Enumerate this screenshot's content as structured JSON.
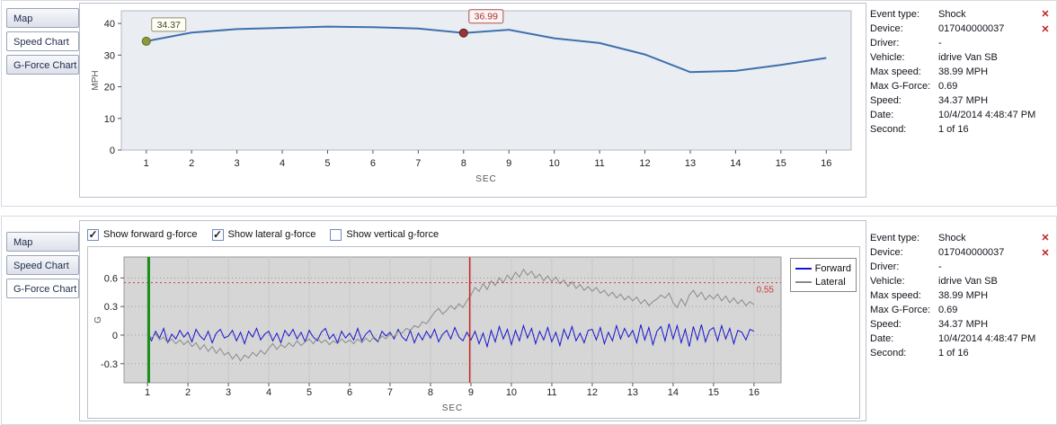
{
  "glyphs": {
    "check": "✓",
    "close": "✕"
  },
  "panels": [
    {
      "id": "speed-panel",
      "tabs": [
        {
          "label": "Map"
        },
        {
          "label": "Speed Chart"
        },
        {
          "label": "G-Force Chart"
        }
      ],
      "selected_tab": "Speed Chart"
    },
    {
      "id": "gforce-panel",
      "tabs": [
        {
          "label": "Map"
        },
        {
          "label": "Speed Chart"
        },
        {
          "label": "G-Force Chart"
        }
      ],
      "selected_tab": "G-Force Chart",
      "checkboxes": [
        {
          "label": "Show forward g-force",
          "checked": true
        },
        {
          "label": "Show lateral g-force",
          "checked": true
        },
        {
          "label": "Show vertical g-force",
          "checked": false
        }
      ]
    }
  ],
  "info_panel": {
    "rows": [
      {
        "label": "Event type:",
        "value": "Shock"
      },
      {
        "label": "Device:",
        "value": "017040000037"
      },
      {
        "label": "Driver:",
        "value": "-"
      },
      {
        "label": "Vehicle:",
        "value": "idrive Van SB"
      },
      {
        "label": "Max speed:",
        "value": "38.99 MPH"
      },
      {
        "label": "Max G-Force:",
        "value": "0.69"
      },
      {
        "label": "Speed:",
        "value": "34.37 MPH"
      },
      {
        "label": "Date:",
        "value": "10/4/2014 4:48:47 PM"
      },
      {
        "label": "Second:",
        "value": "1 of 16"
      }
    ]
  },
  "chart_data": [
    {
      "id": "speed",
      "type": "line",
      "title": "",
      "xlabel": "SEC",
      "ylabel": "MPH",
      "xlim": [
        0.45,
        16.55
      ],
      "ylim": [
        0,
        44
      ],
      "xticks": [
        1,
        2,
        3,
        4,
        5,
        6,
        7,
        8,
        9,
        10,
        11,
        12,
        13,
        14,
        15,
        16
      ],
      "yticks": [
        0,
        10,
        20,
        30,
        40
      ],
      "grid_v": false,
      "grid_h": false,
      "plot_bg": "#eaeef3",
      "plot_border": "#b6bac2",
      "x": [
        1,
        2,
        3,
        4,
        5,
        6,
        7,
        8,
        9,
        10,
        11,
        12,
        13,
        14,
        15,
        16
      ],
      "series": [
        {
          "name": "Speed",
          "color": "#3f6fae",
          "width": 2,
          "values": [
            34.37,
            37.1,
            38.2,
            38.6,
            39.0,
            38.8,
            38.4,
            36.99,
            38.0,
            35.3,
            33.8,
            30.2,
            24.6,
            25.0,
            26.9,
            29.1
          ]
        }
      ],
      "annotations": [
        {
          "x": 1,
          "y": 34.37,
          "label": "34.37",
          "dot_fill": "#8c9a3c",
          "dot_stroke": "#606b24",
          "box_bg": "#fffef2",
          "box_border": "#8f8f75",
          "text_color": "#44442e"
        },
        {
          "x": 8,
          "y": 36.99,
          "label": "36.99",
          "dot_fill": "#973636",
          "dot_stroke": "#5e1f1f",
          "box_bg": "#fdf3f3",
          "box_border": "#a85252",
          "text_color": "#a33434"
        }
      ]
    },
    {
      "id": "gforce",
      "type": "line",
      "title": "",
      "xlabel": "SEC",
      "ylabel": "G",
      "xlim": [
        0.42,
        16.67
      ],
      "ylim": [
        -0.5,
        0.82
      ],
      "xticks": [
        1,
        2,
        3,
        4,
        5,
        6,
        7,
        8,
        9,
        10,
        11,
        12,
        13,
        14,
        15,
        16
      ],
      "yticks": [
        -0.3,
        0,
        0.3,
        0.6
      ],
      "grid_v": true,
      "grid_v_color": "#c9c9c9",
      "grid_h": true,
      "grid_h_color": "#9d9d9d",
      "plot_bg": "#d6d6d6",
      "plot_border": "#9a9a9a",
      "x_start": 1,
      "x_step": 0.1,
      "threshold": {
        "y": 0.55,
        "label": "0.55",
        "color": "#d03a3a"
      },
      "vlines": [
        {
          "x": 1.03,
          "color": "#159015",
          "width": 3
        },
        {
          "x": 8.97,
          "color": "#cc2222",
          "width": 1.5
        }
      ],
      "legend_position": "top-right",
      "series": [
        {
          "name": "Forward",
          "color": "#1515cf",
          "width": 1,
          "values": [
            0.02,
            -0.06,
            0.04,
            -0.03,
            0.07,
            -0.08,
            0.01,
            -0.04,
            0.05,
            -0.02,
            0.03,
            -0.07,
            0.06,
            -0.01,
            -0.05,
            0.04,
            -0.08,
            0.02,
            0.06,
            -0.03,
            -0.01,
            0.05,
            -0.06,
            0.03,
            -0.09,
            0.04,
            -0.02,
            0.07,
            -0.05,
            0.01,
            0.04,
            -0.06,
            0.02,
            -0.08,
            0.05,
            -0.01,
            0.06,
            -0.04,
            0.03,
            -0.07,
            0.05,
            -0.02,
            -0.06,
            0.03,
            0.07,
            -0.04,
            0.01,
            -0.08,
            0.04,
            -0.03,
            0.02,
            -0.05,
            0.07,
            -0.06,
            0.01,
            0.05,
            -0.03,
            -0.07,
            0.04,
            -0.01,
            0.03,
            -0.04,
            0.06,
            -0.02,
            -0.06,
            0.05,
            -0.08,
            0.02,
            -0.05,
            0.04,
            -0.03,
            0.06,
            -0.07,
            0.01,
            0.05,
            -0.04,
            0.08,
            -0.02,
            -0.06,
            0.03,
            -0.05,
            0.04,
            -0.09,
            0.02,
            -0.12,
            0.05,
            -0.07,
            0.09,
            -0.04,
            0.06,
            -0.1,
            0.05,
            -0.06,
            0.1,
            -0.03,
            0.07,
            -0.09,
            0.04,
            -0.05,
            0.08,
            -0.07,
            0.03,
            -0.11,
            0.06,
            -0.04,
            0.09,
            -0.06,
            0.02,
            -0.08,
            0.05,
            0.06,
            -0.05,
            0.08,
            -0.09,
            0.03,
            -0.06,
            0.1,
            -0.04,
            0.07,
            -0.02,
            0.05,
            -0.08,
            0.11,
            -0.05,
            0.08,
            -0.1,
            0.04,
            0.09,
            -0.06,
            0.12,
            -0.04,
            0.1,
            -0.08,
            0.06,
            -0.12,
            0.09,
            -0.05,
            0.11,
            -0.07,
            0.05,
            0.08,
            -0.06,
            0.1,
            -0.04,
            0.07,
            -0.09,
            0.05,
            0.03,
            -0.05,
            0.06,
            0.04
          ]
        },
        {
          "name": "Lateral",
          "color": "#8a8a8a",
          "width": 1,
          "values": [
            0.02,
            -0.03,
            0.01,
            -0.05,
            -0.02,
            -0.08,
            -0.04,
            -0.09,
            -0.05,
            -0.1,
            -0.06,
            -0.12,
            -0.08,
            -0.15,
            -0.1,
            -0.17,
            -0.12,
            -0.19,
            -0.14,
            -0.21,
            -0.18,
            -0.25,
            -0.2,
            -0.27,
            -0.21,
            -0.24,
            -0.18,
            -0.22,
            -0.16,
            -0.2,
            -0.14,
            -0.09,
            -0.15,
            -0.1,
            -0.13,
            -0.08,
            -0.12,
            -0.06,
            -0.11,
            -0.07,
            -0.04,
            -0.09,
            -0.03,
            -0.08,
            -0.05,
            -0.1,
            -0.06,
            -0.09,
            -0.04,
            -0.08,
            -0.05,
            -0.09,
            -0.04,
            -0.08,
            -0.03,
            -0.07,
            -0.02,
            -0.06,
            -0.01,
            -0.04,
            0.01,
            -0.02,
            0.04,
            0.02,
            0.07,
            0.05,
            0.1,
            0.08,
            0.14,
            0.12,
            0.18,
            0.24,
            0.28,
            0.22,
            0.26,
            0.31,
            0.27,
            0.33,
            0.29,
            0.36,
            0.42,
            0.5,
            0.46,
            0.54,
            0.48,
            0.57,
            0.52,
            0.6,
            0.55,
            0.63,
            0.58,
            0.66,
            0.61,
            0.69,
            0.63,
            0.67,
            0.6,
            0.64,
            0.57,
            0.62,
            0.56,
            0.61,
            0.54,
            0.58,
            0.51,
            0.56,
            0.49,
            0.53,
            0.47,
            0.51,
            0.46,
            0.5,
            0.44,
            0.47,
            0.41,
            0.45,
            0.39,
            0.43,
            0.37,
            0.41,
            0.36,
            0.4,
            0.33,
            0.37,
            0.31,
            0.35,
            0.38,
            0.42,
            0.39,
            0.44,
            0.34,
            0.29,
            0.38,
            0.31,
            0.42,
            0.47,
            0.4,
            0.45,
            0.37,
            0.42,
            0.38,
            0.43,
            0.36,
            0.41,
            0.34,
            0.39,
            0.33,
            0.37,
            0.31,
            0.35,
            0.32
          ]
        }
      ]
    }
  ]
}
